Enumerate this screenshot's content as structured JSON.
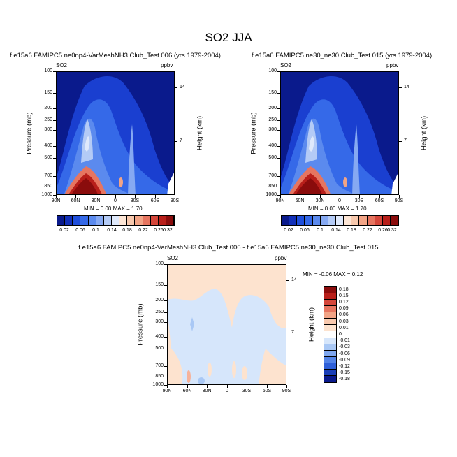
{
  "figure_title": "SO2 JJA",
  "colors": {
    "navy": "#0a1a8c",
    "blue": "#1a3fd0",
    "mid_blue": "#4a7fe8",
    "light_blue": "#a9c8f5",
    "pale_blue": "#d6e6fb",
    "peach": "#fde3cf",
    "salmon": "#f6b29a",
    "red": "#c62a1c",
    "dark_red": "#8a0c0c"
  },
  "panels": [
    {
      "title": "f.e15a6.FAMIPC5.ne0np4-VarMeshNH3.Club_Test.006 (yrs 1979-2004)",
      "variable": "SO2",
      "units": "ppbv",
      "minmax": "MIN =  0.00  MAX =  1.70"
    },
    {
      "title": "f.e15a6.FAMIPC5.ne30_ne30.Club_Test.015 (yrs 1979-2004)",
      "variable": "SO2",
      "units": "ppbv",
      "minmax": "MIN =  0.00  MAX =  1.70"
    },
    {
      "title": "f.e15a6.FAMIPC5.ne0np4-VarMeshNH3.Club_Test.006 - f.e15a6.FAMIPC5.ne30_ne30.Club_Test.015",
      "variable": "SO2",
      "units": "ppbv",
      "minmax": "MIN = -0.06  MAX =  0.12"
    }
  ],
  "labels": {
    "ylabel": "Pressure (mb)",
    "ylabel_right": "Height (km)"
  },
  "colorbar_top": {
    "labels": [
      "0.02",
      "0.06",
      "0.1",
      "0.14",
      "0.18",
      "0.22",
      "0.26",
      "0.32"
    ],
    "colors": [
      "#0a1a8c",
      "#1230b8",
      "#1f4fdc",
      "#3569e8",
      "#5b8aee",
      "#86a9f2",
      "#b4cbf6",
      "#dfe9fb",
      "#fde6d6",
      "#f8c9ae",
      "#f2a486",
      "#e67560",
      "#d4463a",
      "#b81f1a",
      "#8a0c0c"
    ]
  },
  "colorbar_diff": {
    "labels": [
      "0.18",
      "0.15",
      "0.12",
      "0.09",
      "0.06",
      "0.03",
      "0.01",
      "0",
      "-0.01",
      "-0.03",
      "-0.06",
      "-0.09",
      "-0.12",
      "-0.15",
      "-0.18"
    ],
    "colors": [
      "#8a0c0c",
      "#b81f1a",
      "#d4463a",
      "#e67560",
      "#f2a486",
      "#f8c9ae",
      "#fde3cf",
      "#ffffff",
      "#d6e6fb",
      "#a9c8f5",
      "#7ea6ee",
      "#5383e6",
      "#2e5fd8",
      "#1a3fb8",
      "#0a1a8c"
    ]
  },
  "chart_data": [
    {
      "type": "heatmap",
      "title": "f.e15a6.FAMIPC5.ne0np4-VarMeshNH3.Club_Test.006 (yrs 1979-2004)",
      "xlabel": "",
      "ylabel": "Pressure (mb)",
      "ylabel_right": "Height (km)",
      "x_ticks": [
        "90N",
        "60N",
        "30N",
        "0",
        "30S",
        "60S",
        "90S"
      ],
      "y_ticks": [
        100,
        150,
        200,
        250,
        300,
        400,
        500,
        700,
        850,
        1000
      ],
      "y_right_ticks": [
        14,
        7
      ],
      "min": 0.0,
      "max": 1.7,
      "units": "ppbv"
    },
    {
      "type": "heatmap",
      "title": "f.e15a6.FAMIPC5.ne30_ne30.Club_Test.015 (yrs 1979-2004)",
      "xlabel": "",
      "ylabel": "Pressure (mb)",
      "ylabel_right": "Height (km)",
      "x_ticks": [
        "90N",
        "60N",
        "30N",
        "0",
        "30S",
        "60S",
        "90S"
      ],
      "y_ticks": [
        100,
        150,
        200,
        250,
        300,
        400,
        500,
        700,
        850,
        1000
      ],
      "y_right_ticks": [
        14,
        7
      ],
      "min": 0.0,
      "max": 1.7,
      "units": "ppbv"
    },
    {
      "type": "heatmap",
      "title": "f.e15a6.FAMIPC5.ne0np4-VarMeshNH3.Club_Test.006 - f.e15a6.FAMIPC5.ne30_ne30.Club_Test.015",
      "xlabel": "",
      "ylabel": "Pressure (mb)",
      "ylabel_right": "Height (km)",
      "x_ticks": [
        "90N",
        "60N",
        "30N",
        "0",
        "30S",
        "60S",
        "90S"
      ],
      "y_ticks": [
        100,
        150,
        200,
        250,
        300,
        400,
        500,
        700,
        850,
        1000
      ],
      "y_right_ticks": [
        14,
        7
      ],
      "min": -0.06,
      "max": 0.12,
      "units": "ppbv"
    }
  ]
}
